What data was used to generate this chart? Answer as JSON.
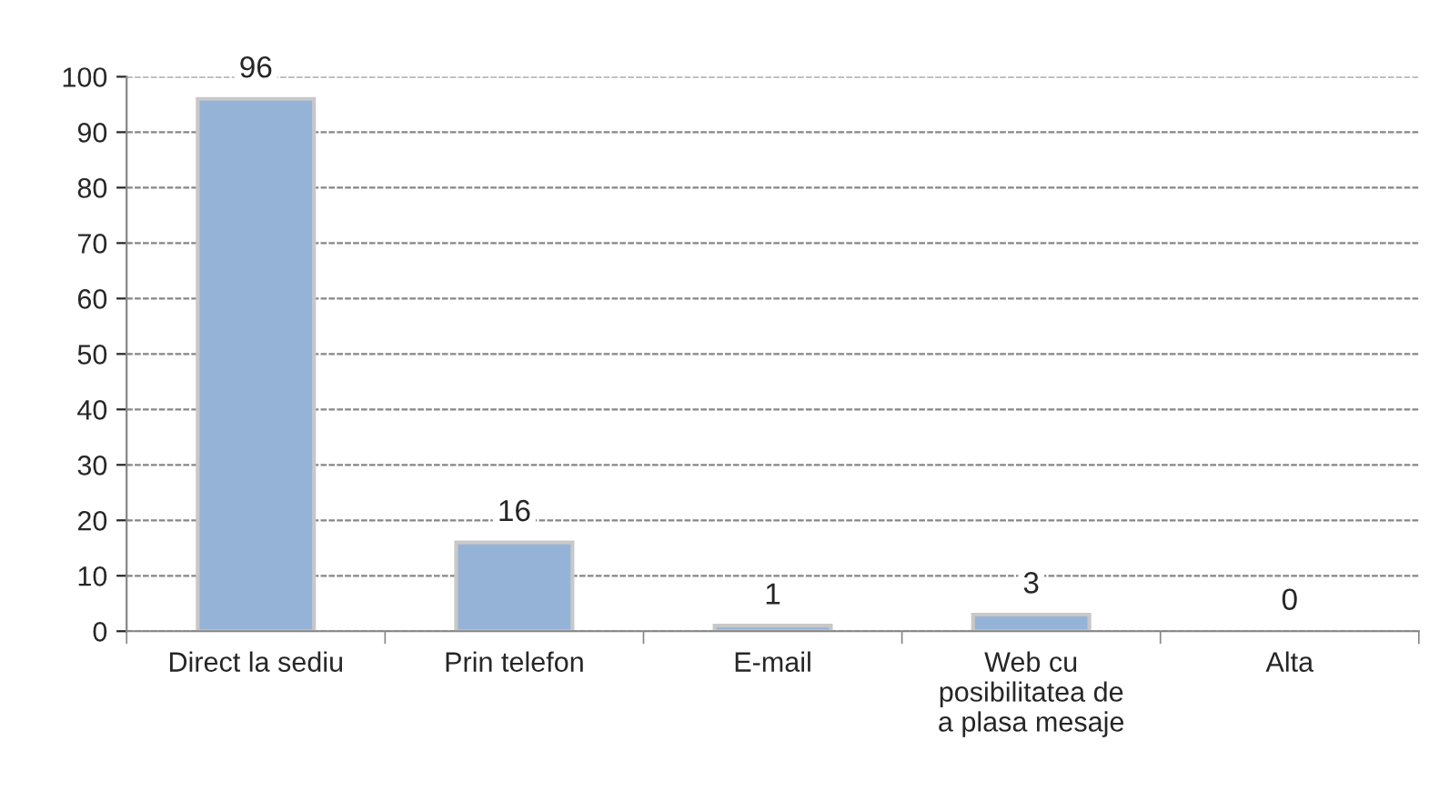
{
  "chart_data": {
    "type": "bar",
    "categories": [
      "Direct la sediu",
      "Prin telefon",
      "E-mail",
      "Web cu\nposibilitatea de\na plasa mesaje",
      "Alta"
    ],
    "values": [
      96,
      16,
      1,
      3,
      0
    ],
    "color": "#95b3d7",
    "ylim": [
      0,
      100
    ],
    "yticks": [
      0,
      10,
      20,
      30,
      40,
      50,
      60,
      70,
      80,
      90,
      100
    ],
    "grid": "y",
    "data_labels": true
  }
}
